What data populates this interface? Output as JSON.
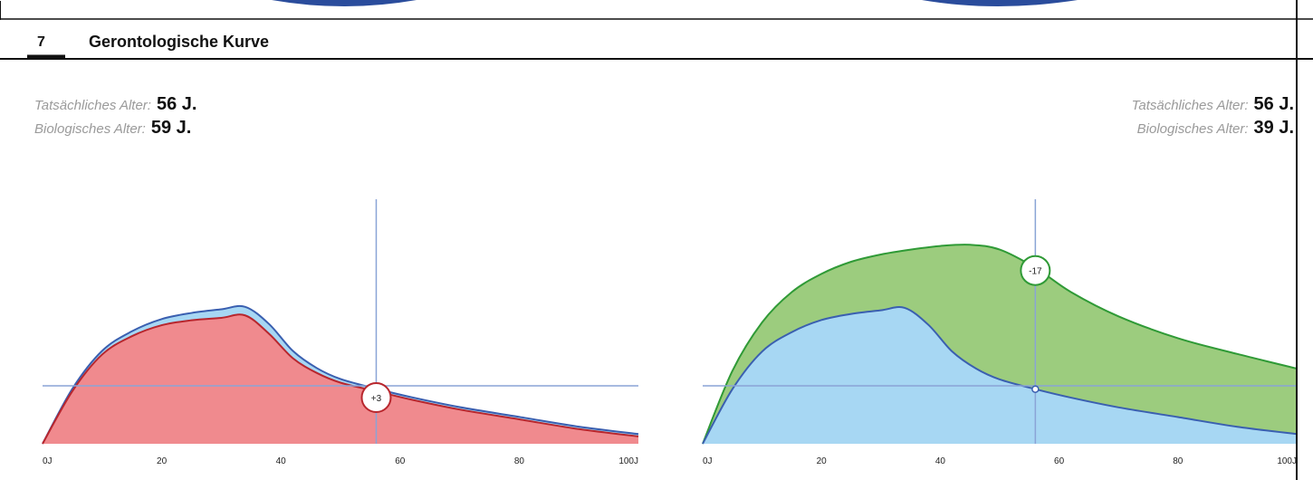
{
  "section": {
    "number": "7",
    "title": "Gerontologische Kurve"
  },
  "left_panel": {
    "actual_label": "Tatsächliches Alter:",
    "actual_value": "56 J.",
    "bio_label": "Biologisches Alter:",
    "bio_value": "59 J.",
    "marker": "+3"
  },
  "right_panel": {
    "actual_label": "Tatsächliches Alter:",
    "actual_value": "56 J.",
    "bio_label": "Biologisches Alter:",
    "bio_value": "39 J.",
    "marker": "-17"
  },
  "colors": {
    "blue_fill": "#a7d7f3",
    "blue_line": "#3a5fb0",
    "red_fill": "#f08a8e",
    "red_line": "#b8262d",
    "green_fill": "#9ccc7e",
    "green_line": "#2f9a36",
    "guide": "#8aa4d6",
    "header_rule": "#111111"
  },
  "chart_data": [
    {
      "type": "area",
      "xlim": [
        0,
        100
      ],
      "x_tick_labels": [
        "0J",
        "20",
        "40",
        "60",
        "80",
        "100J"
      ],
      "crosshair": {
        "x": 56
      },
      "annotation": "+3",
      "series": [
        {
          "x": [
            0,
            5,
            10,
            15,
            20,
            25,
            30,
            34,
            38,
            42,
            46,
            50,
            56,
            62,
            70,
            80,
            90,
            100
          ],
          "y": [
            0,
            45,
            76,
            92,
            102,
            107,
            110,
            112,
            98,
            76,
            62,
            53,
            45,
            38,
            30,
            22,
            14,
            8
          ]
        },
        {
          "x": [
            0,
            5,
            10,
            15,
            20,
            25,
            30,
            34,
            38,
            42,
            46,
            50,
            56,
            62,
            70,
            80,
            90,
            100
          ],
          "y": [
            0,
            43,
            73,
            88,
            97,
            101,
            103,
            105,
            90,
            70,
            58,
            50,
            43,
            36,
            28,
            20,
            12,
            6
          ]
        }
      ]
    },
    {
      "type": "area",
      "xlim": [
        0,
        100
      ],
      "x_tick_labels": [
        "0J",
        "20",
        "40",
        "60",
        "80",
        "100J"
      ],
      "crosshair": {
        "x": 56
      },
      "annotation": "-17",
      "series": [
        {
          "x": [
            0,
            5,
            10,
            15,
            20,
            25,
            30,
            35,
            40,
            45,
            50,
            56,
            62,
            70,
            80,
            90,
            100
          ],
          "y": [
            0,
            60,
            100,
            125,
            140,
            150,
            156,
            160,
            163,
            164,
            160,
            145,
            125,
            105,
            87,
            74,
            62
          ]
        },
        {
          "x": [
            0,
            5,
            10,
            15,
            20,
            25,
            30,
            34,
            38,
            42,
            46,
            50,
            56,
            62,
            70,
            80,
            90,
            100
          ],
          "y": [
            0,
            45,
            76,
            92,
            102,
            107,
            110,
            112,
            98,
            76,
            62,
            53,
            45,
            38,
            30,
            22,
            14,
            8
          ]
        }
      ]
    }
  ]
}
